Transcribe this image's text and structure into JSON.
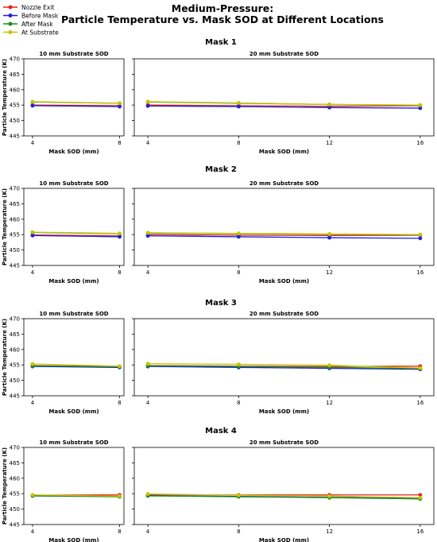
{
  "figure": {
    "title_line1": "Medium-Pressure:",
    "title_line2": "Particle Temperature vs. Mask SOD at Different Locations"
  },
  "legend": {
    "placement": "top-left",
    "entries": [
      {
        "name": "Nozzle Exit",
        "color": "#e8211c"
      },
      {
        "name": "Before Mask",
        "color": "#1f1fe0"
      },
      {
        "name": "After Mask",
        "color": "#1a8f1a"
      },
      {
        "name": "At Substrate",
        "color": "#c9c400"
      }
    ]
  },
  "chart_data": [
    {
      "type": "line",
      "group": "Mask 1",
      "title": "10 mm Substrate SOD",
      "xlabel": "Mask SOD (mm)",
      "ylabel": "Particle Temperature (K)",
      "x": [
        4,
        8
      ],
      "xlim": [
        3.6,
        8.2
      ],
      "ylim": [
        445,
        470
      ],
      "yticks": [
        445,
        450,
        455,
        460,
        465,
        470
      ],
      "grid": false,
      "series": [
        {
          "name": "Nozzle Exit",
          "values": [
            455.0,
            454.8
          ]
        },
        {
          "name": "Before Mask",
          "values": [
            454.8,
            454.5
          ]
        },
        {
          "name": "After Mask",
          "values": [
            456.0,
            455.6
          ]
        },
        {
          "name": "At Substrate",
          "values": [
            456.1,
            455.6
          ]
        }
      ]
    },
    {
      "type": "line",
      "group": "Mask 1",
      "title": "20 mm Substrate SOD",
      "xlabel": "Mask SOD (mm)",
      "ylabel": "",
      "x": [
        4,
        8,
        12,
        16
      ],
      "xlim": [
        3.4,
        16.6
      ],
      "ylim": [
        445,
        470
      ],
      "grid": false,
      "series": [
        {
          "name": "Nozzle Exit",
          "values": [
            455.0,
            454.8,
            454.6,
            454.8
          ]
        },
        {
          "name": "Before Mask",
          "values": [
            454.7,
            454.5,
            454.2,
            454.0
          ]
        },
        {
          "name": "After Mask",
          "values": [
            456.0,
            455.6,
            455.2,
            454.9
          ]
        },
        {
          "name": "At Substrate",
          "values": [
            456.1,
            455.7,
            455.2,
            455.0
          ]
        }
      ]
    },
    {
      "type": "line",
      "group": "Mask 2",
      "title": "10 mm Substrate SOD",
      "xlabel": "Mask SOD (mm)",
      "ylabel": "Particle Temperature (K)",
      "x": [
        4,
        8
      ],
      "xlim": [
        3.6,
        8.2
      ],
      "ylim": [
        445,
        470
      ],
      "yticks": [
        445,
        450,
        455,
        460,
        465,
        470
      ],
      "grid": false,
      "series": [
        {
          "name": "Nozzle Exit",
          "values": [
            454.9,
            454.6
          ]
        },
        {
          "name": "Before Mask",
          "values": [
            454.7,
            454.3
          ]
        },
        {
          "name": "After Mask",
          "values": [
            455.7,
            455.3
          ]
        },
        {
          "name": "At Substrate",
          "values": [
            455.8,
            455.4
          ]
        }
      ]
    },
    {
      "type": "line",
      "group": "Mask 2",
      "title": "20 mm Substrate SOD",
      "xlabel": "Mask SOD (mm)",
      "ylabel": "",
      "x": [
        4,
        8,
        12,
        16
      ],
      "xlim": [
        3.4,
        16.6
      ],
      "ylim": [
        445,
        470
      ],
      "grid": false,
      "series": [
        {
          "name": "Nozzle Exit",
          "values": [
            455.0,
            454.8,
            454.7,
            454.8
          ]
        },
        {
          "name": "Before Mask",
          "values": [
            454.6,
            454.3,
            454.0,
            453.8
          ]
        },
        {
          "name": "After Mask",
          "values": [
            455.5,
            455.3,
            455.1,
            454.9
          ]
        },
        {
          "name": "At Substrate",
          "values": [
            455.6,
            455.4,
            455.2,
            455.0
          ]
        }
      ]
    },
    {
      "type": "line",
      "group": "Mask 3",
      "title": "10 mm Substrate SOD",
      "xlabel": "Mask SOD (mm)",
      "ylabel": "Particle Temperature (K)",
      "x": [
        4,
        8
      ],
      "xlim": [
        3.6,
        8.2
      ],
      "ylim": [
        445,
        470
      ],
      "yticks": [
        445,
        450,
        455,
        460,
        465,
        470
      ],
      "grid": false,
      "series": [
        {
          "name": "Nozzle Exit",
          "values": [
            454.8,
            454.4
          ]
        },
        {
          "name": "Before Mask",
          "values": [
            454.5,
            454.2
          ]
        },
        {
          "name": "After Mask",
          "values": [
            454.7,
            454.4
          ]
        },
        {
          "name": "At Substrate",
          "values": [
            455.3,
            454.6
          ]
        }
      ]
    },
    {
      "type": "line",
      "group": "Mask 3",
      "title": "20 mm Substrate SOD",
      "xlabel": "Mask SOD (mm)",
      "ylabel": "",
      "x": [
        4,
        8,
        12,
        16
      ],
      "xlim": [
        3.4,
        16.6
      ],
      "ylim": [
        445,
        470
      ],
      "grid": false,
      "series": [
        {
          "name": "Nozzle Exit",
          "values": [
            454.8,
            454.6,
            454.5,
            454.6
          ]
        },
        {
          "name": "Before Mask",
          "values": [
            454.5,
            454.2,
            453.9,
            453.6
          ]
        },
        {
          "name": "After Mask",
          "values": [
            454.7,
            454.5,
            454.2,
            453.8
          ]
        },
        {
          "name": "At Substrate",
          "values": [
            455.4,
            455.2,
            454.9,
            454.0
          ]
        }
      ]
    },
    {
      "type": "line",
      "group": "Mask 4",
      "title": "10 mm Substrate SOD",
      "xlabel": "Mask SOD (mm)",
      "ylabel": "Particle Temperature (K)",
      "x": [
        4,
        8
      ],
      "xlim": [
        3.6,
        8.2
      ],
      "ylim": [
        445,
        470
      ],
      "yticks": [
        445,
        450,
        455,
        460,
        465,
        470
      ],
      "grid": false,
      "series": [
        {
          "name": "Nozzle Exit",
          "values": [
            454.5,
            454.6
          ]
        },
        {
          "name": "Before Mask",
          "values": [
            454.3,
            454.1
          ]
        },
        {
          "name": "After Mask",
          "values": [
            454.3,
            454.0
          ]
        },
        {
          "name": "At Substrate",
          "values": [
            454.6,
            454.2
          ]
        }
      ]
    },
    {
      "type": "line",
      "group": "Mask 4",
      "title": "20 mm Substrate SOD",
      "xlabel": "Mask SOD (mm)",
      "ylabel": "",
      "x": [
        4,
        8,
        12,
        16
      ],
      "xlim": [
        3.4,
        16.6
      ],
      "ylim": [
        445,
        470
      ],
      "grid": false,
      "series": [
        {
          "name": "Nozzle Exit",
          "values": [
            454.7,
            454.6,
            454.6,
            454.6
          ]
        },
        {
          "name": "Before Mask",
          "values": [
            454.4,
            454.1,
            453.8,
            453.5
          ]
        },
        {
          "name": "After Mask",
          "values": [
            454.3,
            454.0,
            453.7,
            453.3
          ]
        },
        {
          "name": "At Substrate",
          "values": [
            454.9,
            454.5,
            454.2,
            453.7
          ]
        }
      ]
    }
  ]
}
